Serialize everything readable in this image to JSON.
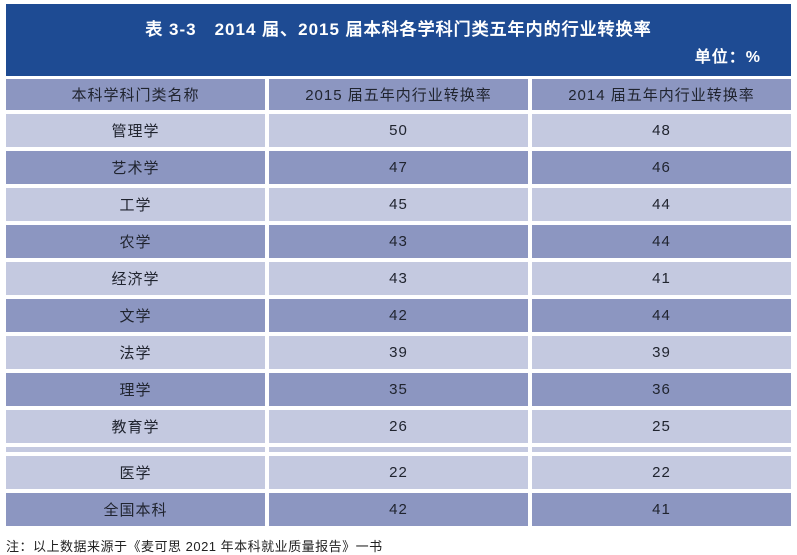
{
  "colors": {
    "title_bg": "#1e4b93",
    "title_text": "#ffffff",
    "row_dark": "#8c96c1",
    "row_light": "#c4c9e0",
    "cell_text": "#20242f",
    "note_text": "#222222"
  },
  "chart_data": {
    "type": "table",
    "title": "表 3-3　2014 届、2015 届本科各学科门类五年内的行业转换率",
    "unit": "单位：%",
    "columns": [
      "本科学科门类名称",
      "2015 届五年内行业转换率",
      "2014 届五年内行业转换率"
    ],
    "sections": [
      {
        "rows": [
          [
            "管理学",
            50,
            48
          ],
          [
            "艺术学",
            47,
            46
          ],
          [
            "工学",
            45,
            44
          ],
          [
            "农学",
            43,
            44
          ],
          [
            "经济学",
            43,
            41
          ],
          [
            "文学",
            42,
            44
          ],
          [
            "法学",
            39,
            39
          ],
          [
            "理学",
            35,
            36
          ],
          [
            "教育学",
            26,
            25
          ]
        ]
      },
      {
        "rows": [
          [
            "医学",
            22,
            22
          ],
          [
            "全国本科",
            42,
            41
          ]
        ]
      }
    ],
    "note": "注：以上数据来源于《麦可思 2021 年本科就业质量报告》一书"
  }
}
